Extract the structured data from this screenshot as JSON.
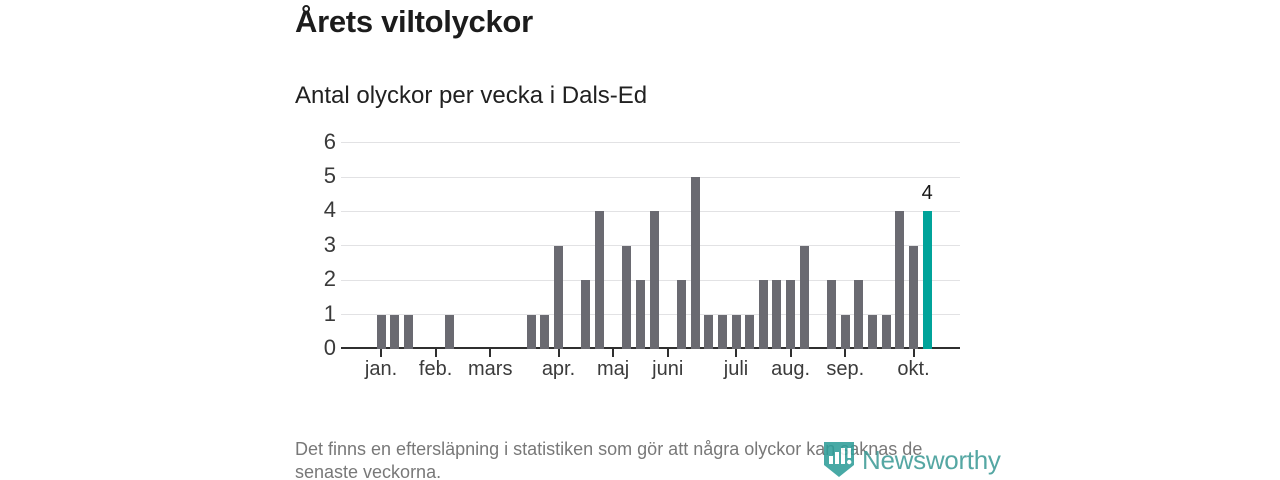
{
  "header": {
    "title": "Årets viltolyckor",
    "subtitle": "Antal olyckor per vecka i Dals-Ed"
  },
  "footer": {
    "note": "Det finns en eftersläpning i statistiken som gör att några olyckor kan saknas de senaste veckorna.",
    "logo_text": "Newsworthy"
  },
  "chart_data": {
    "type": "bar",
    "title": "Årets viltolyckor",
    "subtitle": "Antal olyckor per vecka i Dals-Ed",
    "x_unit": "week-of-year",
    "weeks": [
      1,
      2,
      3,
      4,
      5,
      6,
      7,
      8,
      9,
      10,
      11,
      12,
      13,
      14,
      15,
      16,
      17,
      18,
      19,
      20,
      21,
      22,
      23,
      24,
      25,
      26,
      27,
      28,
      29,
      30,
      31,
      32,
      33,
      34,
      35,
      36,
      37,
      38,
      39,
      40,
      41
    ],
    "values": [
      1,
      1,
      1,
      0,
      0,
      1,
      0,
      0,
      0,
      0,
      0,
      1,
      1,
      3,
      0,
      2,
      4,
      0,
      3,
      2,
      4,
      0,
      2,
      5,
      1,
      1,
      1,
      1,
      2,
      2,
      2,
      3,
      0,
      2,
      1,
      2,
      1,
      1,
      4,
      3,
      4
    ],
    "highlight_week": 41,
    "annotation": {
      "week": 41,
      "label": "4"
    },
    "month_ticks": [
      {
        "label": "jan.",
        "week": 1
      },
      {
        "label": "feb.",
        "week": 5
      },
      {
        "label": "mars",
        "week": 9
      },
      {
        "label": "apr.",
        "week": 14
      },
      {
        "label": "maj",
        "week": 18
      },
      {
        "label": "juni",
        "week": 22
      },
      {
        "label": "juli",
        "week": 27
      },
      {
        "label": "aug.",
        "week": 31
      },
      {
        "label": "sep.",
        "week": 35
      },
      {
        "label": "okt.",
        "week": 40
      }
    ],
    "y_ticks": [
      0,
      1,
      2,
      3,
      4,
      5,
      6
    ],
    "ylim": [
      0,
      6
    ],
    "grid": true,
    "legend": false,
    "colors": {
      "bar": "#6a6a71",
      "highlight": "#00a39a",
      "grid": "#e2e2e4",
      "axis": "#2f2f2f",
      "logo": "#3e9b97"
    }
  }
}
